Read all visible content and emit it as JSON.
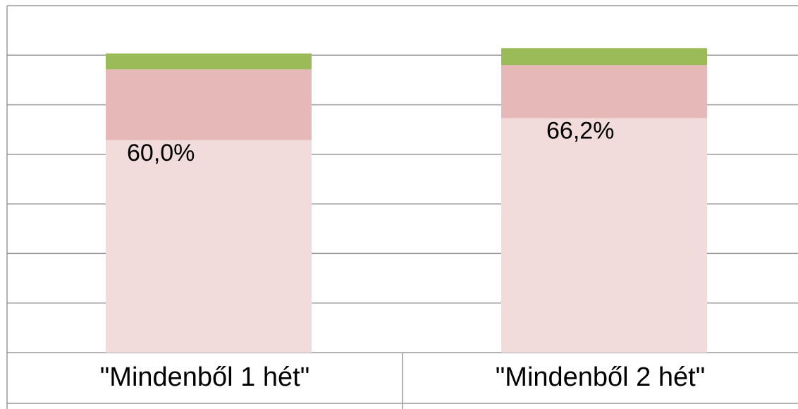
{
  "chart_data": {
    "type": "stacked_bar",
    "categories": [
      "\"Mindenből 1 hét\"",
      "\"Mindenből 2 hét\""
    ],
    "series": [
      {
        "color": "#f2dbdb",
        "values": [
          60.0,
          66.2
        ],
        "value_labels": [
          "60,0%",
          "66,2%"
        ]
      },
      {
        "color": "#e6b8b7",
        "values": [
          20,
          15
        ]
      },
      {
        "color": "#9bbb59",
        "values": [
          4.5,
          4.8
        ]
      }
    ],
    "ylim": [
      0,
      98
    ],
    "yticks": [
      0,
      14,
      28,
      42,
      56,
      70,
      84,
      98
    ],
    "grid": true
  }
}
